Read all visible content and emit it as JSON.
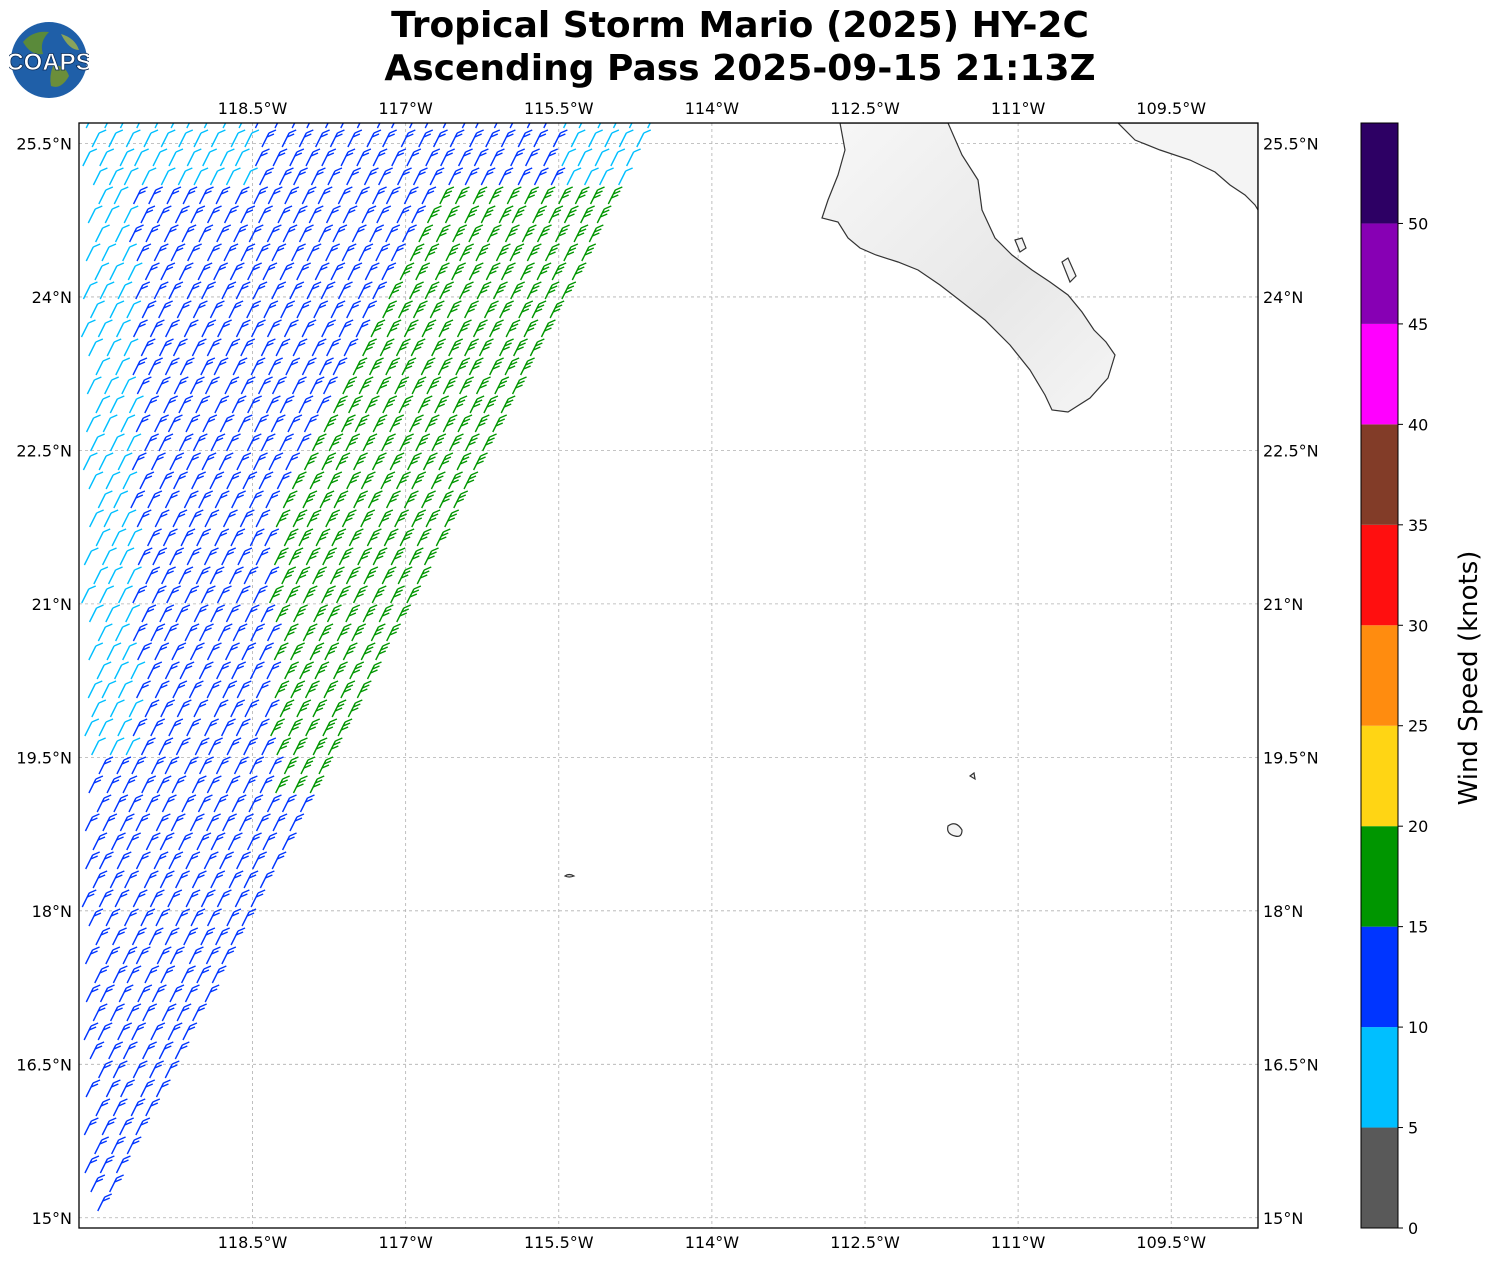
{
  "title_line1": "Tropical Storm Mario (2025) HY-2C",
  "title_line2": "Ascending Pass 2025-09-15 21:13Z",
  "logo_text": "COAPS",
  "map": {
    "lon_range": [
      -120.2,
      -108.65
    ],
    "lat_range": [
      14.9,
      25.7
    ],
    "lon_ticks": [
      "118.5°W",
      "117°W",
      "115.5°W",
      "114°W",
      "112.5°W",
      "111°W",
      "109.5°W"
    ],
    "lon_tick_values": [
      -118.5,
      -117,
      -115.5,
      -114,
      -112.5,
      -111,
      -109.5
    ],
    "lat_ticks": [
      "25.5°N",
      "24°N",
      "22.5°N",
      "21°N",
      "19.5°N",
      "18°N",
      "16.5°N",
      "15°N"
    ],
    "lat_tick_values": [
      25.5,
      24,
      22.5,
      21,
      19.5,
      18,
      16.5,
      15
    ],
    "land_color": "#f4f4f4",
    "coast_color": "#333333",
    "grid_color": "#b0b0b0"
  },
  "colorbar": {
    "label": "Wind Speed (knots)",
    "ticks": [
      "0",
      "5",
      "10",
      "15",
      "20",
      "25",
      "30",
      "35",
      "40",
      "45",
      "50"
    ],
    "bins": [
      {
        "min": 0,
        "max": 5,
        "color": "#595959"
      },
      {
        "min": 5,
        "max": 10,
        "color": "#00bfff"
      },
      {
        "min": 10,
        "max": 15,
        "color": "#0035ff"
      },
      {
        "min": 15,
        "max": 20,
        "color": "#009600"
      },
      {
        "min": 20,
        "max": 25,
        "color": "#ffd514"
      },
      {
        "min": 25,
        "max": 30,
        "color": "#ff8c0f"
      },
      {
        "min": 30,
        "max": 35,
        "color": "#ff0f0f"
      },
      {
        "min": 35,
        "max": 40,
        "color": "#823c28"
      },
      {
        "min": 40,
        "max": 45,
        "color": "#ff00ff"
      },
      {
        "min": 45,
        "max": 50,
        "color": "#8700b4"
      },
      {
        "min": 50,
        "max": 55,
        "color": "#2d0064"
      }
    ]
  },
  "swath": {
    "wind_direction": "north-northeasterly",
    "speed_zones": [
      "cyan along western edge",
      "blue across most of swath",
      "green band near eastern swath edge 19.5°N–24.5°N"
    ]
  }
}
